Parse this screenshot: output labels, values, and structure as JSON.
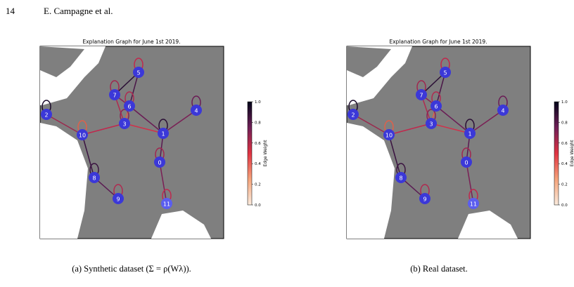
{
  "header": {
    "page_number": "14",
    "authors": "E. Campagne et al."
  },
  "figures": [
    {
      "title": "Explanation Graph for June 1st 2019.",
      "nodes": [
        "0",
        "1",
        "2",
        "3",
        "4",
        "5",
        "6",
        "7",
        "8",
        "9",
        "10",
        "11"
      ],
      "colorbar": {
        "label": "Edge Weight",
        "ticks": [
          {
            "value": 0,
            "label": "0.0"
          },
          {
            "value": 0.2,
            "label": "0.2"
          },
          {
            "value": 0.4,
            "label": "0.4"
          },
          {
            "value": 0.6,
            "label": "0.6"
          },
          {
            "value": 0.8,
            "label": "0.8"
          },
          {
            "value": 1,
            "label": "1.0"
          }
        ]
      },
      "caption": "(a) Synthetic dataset (Σ = ρ(Wλ))."
    },
    {
      "title": "Explanation Graph for June 1st 2019.",
      "nodes": [
        "0",
        "1",
        "2",
        "3",
        "4",
        "5",
        "6",
        "7",
        "8",
        "9",
        "10",
        "11"
      ],
      "colorbar": {
        "label": "Edge Weight",
        "ticks": [
          {
            "value": 0,
            "label": "0.0"
          },
          {
            "value": 0.2,
            "label": "0.2"
          },
          {
            "value": 0.4,
            "label": "0.4"
          },
          {
            "value": 0.6,
            "label": "0.6"
          },
          {
            "value": 0.8,
            "label": "0.8"
          },
          {
            "value": 1,
            "label": "1.0"
          }
        ]
      },
      "caption": "(b) Real dataset."
    }
  ]
}
